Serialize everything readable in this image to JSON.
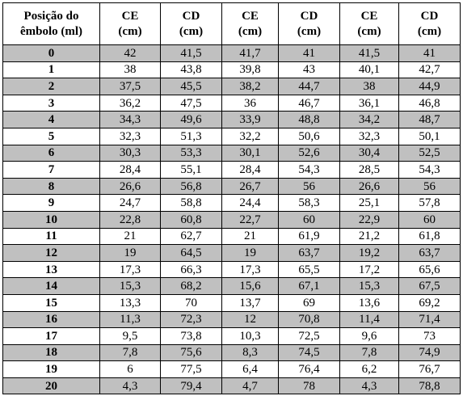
{
  "table": {
    "headers": [
      "Posição do\nêmbolo (ml)",
      "CE\n(cm)",
      "CD\n(cm)",
      "CE\n(cm)",
      "CD\n(cm)",
      "CE\n(cm)",
      "CD\n(cm)"
    ],
    "rows": [
      [
        "0",
        "42",
        "41,5",
        "41,7",
        "41",
        "41,5",
        "41"
      ],
      [
        "1",
        "38",
        "43,8",
        "39,8",
        "43",
        "40,1",
        "42,7"
      ],
      [
        "2",
        "37,5",
        "45,5",
        "38,2",
        "44,7",
        "38",
        "44,9"
      ],
      [
        "3",
        "36,2",
        "47,5",
        "36",
        "46,7",
        "36,1",
        "46,8"
      ],
      [
        "4",
        "34,3",
        "49,6",
        "33,9",
        "48,8",
        "34,2",
        "48,7"
      ],
      [
        "5",
        "32,3",
        "51,3",
        "32,2",
        "50,6",
        "32,3",
        "50,1"
      ],
      [
        "6",
        "30,3",
        "53,3",
        "30,1",
        "52,6",
        "30,4",
        "52,5"
      ],
      [
        "7",
        "28,4",
        "55,1",
        "28,4",
        "54,3",
        "28,5",
        "54,3"
      ],
      [
        "8",
        "26,6",
        "56,8",
        "26,7",
        "56",
        "26,6",
        "56"
      ],
      [
        "9",
        "24,7",
        "58,8",
        "24,4",
        "58,3",
        "25,1",
        "57,8"
      ],
      [
        "10",
        "22,8",
        "60,8",
        "22,7",
        "60",
        "22,9",
        "60"
      ],
      [
        "11",
        "21",
        "62,7",
        "21",
        "61,9",
        "21,2",
        "61,8"
      ],
      [
        "12",
        "19",
        "64,5",
        "19",
        "63,7",
        "19,2",
        "63,7"
      ],
      [
        "13",
        "17,3",
        "66,3",
        "17,3",
        "65,5",
        "17,2",
        "65,6"
      ],
      [
        "14",
        "15,3",
        "68,2",
        "15,6",
        "67,1",
        "15,3",
        "67,5"
      ],
      [
        "15",
        "13,3",
        "70",
        "13,7",
        "69",
        "13,6",
        "69,2"
      ],
      [
        "16",
        "11,3",
        "72,3",
        "12",
        "70,8",
        "11,4",
        "71,4"
      ],
      [
        "17",
        "9,5",
        "73,8",
        "10,3",
        "72,5",
        "9,6",
        "73"
      ],
      [
        "18",
        "7,8",
        "75,6",
        "8,3",
        "74,5",
        "7,8",
        "74,9"
      ],
      [
        "19",
        "6",
        "77,5",
        "6,4",
        "76,4",
        "6,2",
        "76,7"
      ],
      [
        "20",
        "4,3",
        "79,4",
        "4,7",
        "78",
        "4,3",
        "78,8"
      ]
    ],
    "shaded_rows": [
      0,
      2,
      4,
      6,
      8,
      10,
      12,
      14,
      16,
      18,
      20
    ],
    "shade_color": "#c0c0c0",
    "border_color": "#000000"
  }
}
